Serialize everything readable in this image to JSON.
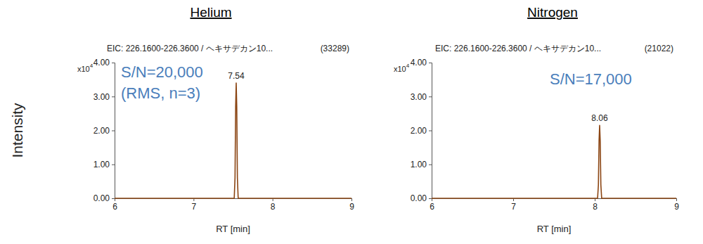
{
  "chart_data": [
    {
      "type": "line",
      "title": "Helium",
      "subtitle": "EIC: 226.1600-226.3600 / ヘキサデカン10...",
      "subtitle_right": "(33289)",
      "y_label": "Intensity",
      "x_label": "RT [min]",
      "y_multiplier": "x10",
      "y_multiplier_exponent": "4",
      "notes": [
        "S/N=20,000",
        "(RMS, n=3)"
      ],
      "x": [
        6,
        7.515,
        7.525,
        7.533,
        7.54,
        7.547,
        7.555,
        7.565,
        9
      ],
      "values": [
        0,
        0,
        0.6,
        2.7,
        3.4,
        2.7,
        0.6,
        0,
        0
      ],
      "color": "#8b4513",
      "annotations": [
        {
          "x": 7.54,
          "y": 3.4,
          "text": "7.54"
        }
      ],
      "xlim": [
        6,
        9
      ],
      "xticks": [
        6,
        7,
        8,
        9
      ],
      "ylim": [
        0,
        4
      ],
      "yticks": [
        {
          "value": 0,
          "label": "0.00"
        },
        {
          "value": 1,
          "label": "1.00"
        },
        {
          "value": 2,
          "label": "2.00"
        },
        {
          "value": 3,
          "label": "3.00"
        },
        {
          "value": 4,
          "label": "4.00"
        }
      ],
      "grid": false
    },
    {
      "type": "line",
      "title": "Nitrogen",
      "subtitle": "EIC: 226.1600-226.3600 / ヘキサデカン10...",
      "subtitle_right": "(21022)",
      "x_label": "RT [min]",
      "y_multiplier": "x10",
      "y_multiplier_exponent": "4",
      "notes": [
        "S/N=17,000"
      ],
      "x": [
        6,
        8.035,
        8.045,
        8.053,
        8.06,
        8.067,
        8.075,
        8.085,
        9
      ],
      "values": [
        0,
        0,
        0.4,
        1.7,
        2.15,
        1.7,
        0.4,
        0,
        0
      ],
      "color": "#8b4513",
      "annotations": [
        {
          "x": 8.06,
          "y": 2.15,
          "text": "8.06"
        }
      ],
      "xlim": [
        6,
        9
      ],
      "xticks": [
        6,
        7,
        8,
        9
      ],
      "ylim": [
        0,
        4
      ],
      "yticks": [
        {
          "value": 0,
          "label": "0.00"
        },
        {
          "value": 1,
          "label": "1.00"
        },
        {
          "value": 2,
          "label": "2.00"
        },
        {
          "value": 3,
          "label": "3.00"
        },
        {
          "value": 4,
          "label": "4.00"
        }
      ],
      "grid": false
    }
  ]
}
